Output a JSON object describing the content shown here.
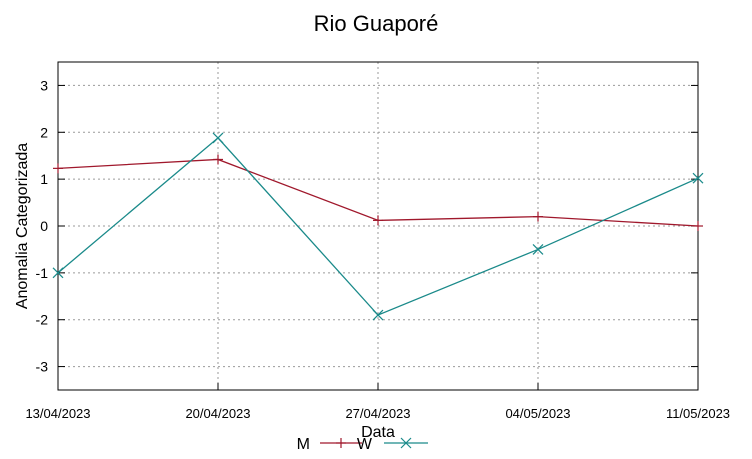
{
  "chart_data": {
    "type": "line",
    "title": "Rio Guaporé",
    "xlabel": "Data",
    "ylabel": "Anomalia Categorizada",
    "categories": [
      "13/04/2023",
      "20/04/2023",
      "27/04/2023",
      "04/05/2023",
      "11/05/2023"
    ],
    "ylim": [
      -3.5,
      3.5
    ],
    "yticks": [
      "-3",
      "-2",
      "-1",
      "0",
      "1",
      "2",
      "3"
    ],
    "grid": true,
    "legend_position": "bottom",
    "series": [
      {
        "name": "M",
        "color": "#a0182c",
        "marker": "+",
        "values": [
          1.23,
          1.42,
          0.12,
          0.2,
          0.0
        ]
      },
      {
        "name": "W",
        "color": "#1a8a8a",
        "marker": "x",
        "values": [
          -1.0,
          1.88,
          -1.9,
          -0.5,
          1.02
        ]
      }
    ]
  }
}
